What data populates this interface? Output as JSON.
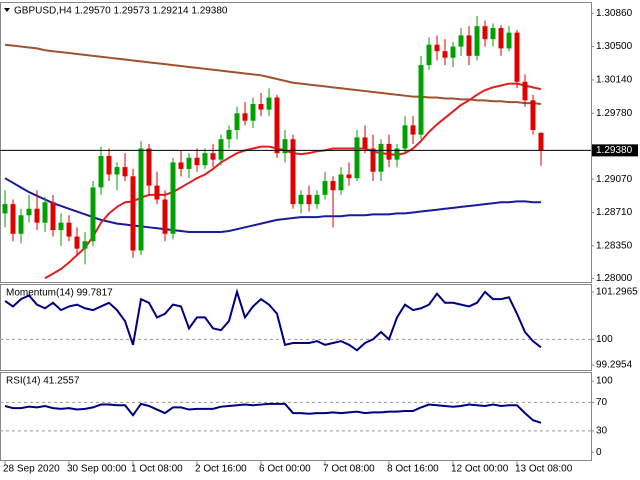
{
  "chart_data": {
    "type": "candlestick",
    "title": "GBPUSD,H4  1.29570 1.29573 1.29214 1.29380",
    "categories": [
      "28 Sep 2020",
      null,
      null,
      null,
      null,
      null,
      null,
      null,
      "30 Sep 00:00",
      null,
      null,
      null,
      null,
      null,
      null,
      null,
      "1 Oct 08:00",
      null,
      null,
      null,
      null,
      null,
      null,
      null,
      "2 Oct 16:00",
      null,
      null,
      null,
      null,
      null,
      null,
      null,
      "6 Oct 00:00",
      null,
      null,
      null,
      null,
      null,
      null,
      null,
      "7 Oct 08:00",
      null,
      null,
      null,
      null,
      null,
      null,
      null,
      "8 Oct 16:00",
      null,
      null,
      null,
      null,
      null,
      null,
      null,
      "12 Oct 00:00",
      null,
      null,
      null,
      null,
      null,
      null,
      null,
      "13 Oct 08:00",
      null,
      null,
      null
    ],
    "ohlc": [
      [
        1.287,
        1.2895,
        1.2855,
        1.288
      ],
      [
        1.288,
        1.2885,
        1.284,
        1.2848
      ],
      [
        1.2848,
        1.2875,
        1.2838,
        1.2868
      ],
      [
        1.2868,
        1.289,
        1.286,
        1.2875
      ],
      [
        1.2875,
        1.2895,
        1.2852,
        1.286
      ],
      [
        1.286,
        1.2888,
        1.285,
        1.2882
      ],
      [
        1.2882,
        1.289,
        1.2845,
        1.2852
      ],
      [
        1.2852,
        1.287,
        1.2835,
        1.286
      ],
      [
        1.286,
        1.2868,
        1.284,
        1.2845
      ],
      [
        1.2845,
        1.2855,
        1.2825,
        1.2832
      ],
      [
        1.2832,
        1.285,
        1.2815,
        1.284
      ],
      [
        1.284,
        1.2905,
        1.2835,
        1.2898
      ],
      [
        1.2898,
        1.2942,
        1.289,
        1.2932
      ],
      [
        1.2932,
        1.294,
        1.2905,
        1.2912
      ],
      [
        1.2912,
        1.2925,
        1.2895,
        1.292
      ],
      [
        1.292,
        1.2935,
        1.2905,
        1.291
      ],
      [
        1.291,
        1.2918,
        1.2822,
        1.283
      ],
      [
        1.283,
        1.2948,
        1.2825,
        1.294
      ],
      [
        1.294,
        1.2945,
        1.289,
        1.29
      ],
      [
        1.29,
        1.2915,
        1.288,
        1.2885
      ],
      [
        1.2885,
        1.2895,
        1.284,
        1.2848
      ],
      [
        1.2848,
        1.293,
        1.2842,
        1.2925
      ],
      [
        1.2925,
        1.2938,
        1.291,
        1.2918
      ],
      [
        1.2918,
        1.2935,
        1.2908,
        1.293
      ],
      [
        1.293,
        1.294,
        1.2915,
        1.2922
      ],
      [
        1.2922,
        1.294,
        1.2918,
        1.2935
      ],
      [
        1.2935,
        1.2945,
        1.292,
        1.2928
      ],
      [
        1.2928,
        1.2955,
        1.2922,
        1.295
      ],
      [
        1.295,
        1.2965,
        1.294,
        1.296
      ],
      [
        1.296,
        1.2985,
        1.295,
        1.2978
      ],
      [
        1.2978,
        1.299,
        1.2965,
        1.297
      ],
      [
        1.297,
        1.2995,
        1.2962,
        1.2988
      ],
      [
        1.2988,
        1.3,
        1.2975,
        1.2982
      ],
      [
        1.2982,
        1.3005,
        1.2975,
        1.2995
      ],
      [
        1.2995,
        1.2998,
        1.293,
        1.2935
      ],
      [
        1.2935,
        1.296,
        1.2925,
        1.295
      ],
      [
        1.295,
        1.2955,
        1.2875,
        1.288
      ],
      [
        1.288,
        1.2895,
        1.287,
        1.289
      ],
      [
        1.289,
        1.29,
        1.2872,
        1.288
      ],
      [
        1.288,
        1.2895,
        1.2875,
        1.289
      ],
      [
        1.289,
        1.2915,
        1.2885,
        1.2905
      ],
      [
        1.2905,
        1.291,
        1.2855,
        1.2895
      ],
      [
        1.2895,
        1.292,
        1.289,
        1.2912
      ],
      [
        1.2912,
        1.2925,
        1.29,
        1.2908
      ],
      [
        1.2908,
        1.296,
        1.2905,
        1.2952
      ],
      [
        1.2952,
        1.2965,
        1.2935,
        1.294
      ],
      [
        1.294,
        1.2955,
        1.2905,
        1.2915
      ],
      [
        1.2915,
        1.295,
        1.2905,
        1.2945
      ],
      [
        1.2945,
        1.2955,
        1.292,
        1.2928
      ],
      [
        1.2928,
        1.2945,
        1.292,
        1.294
      ],
      [
        1.294,
        1.2975,
        1.2935,
        1.2965
      ],
      [
        1.2965,
        1.2975,
        1.2945,
        1.2955
      ],
      [
        1.2955,
        1.304,
        1.295,
        1.303
      ],
      [
        1.303,
        1.306,
        1.3025,
        1.3052
      ],
      [
        1.3052,
        1.3062,
        1.3035,
        1.3045
      ],
      [
        1.3045,
        1.3058,
        1.303,
        1.3038
      ],
      [
        1.3038,
        1.3055,
        1.3028,
        1.305
      ],
      [
        1.305,
        1.307,
        1.304,
        1.3062
      ],
      [
        1.3062,
        1.3072,
        1.303,
        1.304
      ],
      [
        1.304,
        1.3083,
        1.3035,
        1.3072
      ],
      [
        1.3072,
        1.3078,
        1.305,
        1.3058
      ],
      [
        1.3058,
        1.3075,
        1.305,
        1.307
      ],
      [
        1.307,
        1.3073,
        1.304,
        1.3048
      ],
      [
        1.3048,
        1.3072,
        1.3045,
        1.3065
      ],
      [
        1.3065,
        1.3068,
        1.3005,
        1.3012
      ],
      [
        1.3012,
        1.302,
        1.2985,
        1.2992
      ],
      [
        1.2992,
        1.2998,
        1.2955,
        1.296
      ],
      [
        1.2957,
        1.29573,
        1.29214,
        1.2938
      ]
    ],
    "up_color": "#00a000",
    "down_color": "#e00000",
    "ylim": [
      1.2796,
      1.3097
    ],
    "yticks": [
      {
        "value": 1.3086,
        "label": "1.30860"
      },
      {
        "value": 1.305,
        "label": "1.30500"
      },
      {
        "value": 1.3014,
        "label": "1.30140"
      },
      {
        "value": 1.2978,
        "label": "1.29780"
      },
      {
        "value": 1.2907,
        "label": "1.29070"
      },
      {
        "value": 1.2871,
        "label": "1.28710"
      },
      {
        "value": 1.2835,
        "label": "1.28350"
      },
      {
        "value": 1.28,
        "label": "1.28000"
      }
    ],
    "last_price": {
      "value": 1.2938,
      "label": "1.29380"
    },
    "overlays": [
      {
        "color": "#a0522d",
        "values": [
          1.3052,
          1.3051,
          1.305,
          1.3049,
          1.3048,
          1.3046,
          1.3045,
          1.3044,
          1.3043,
          1.3042,
          1.3041,
          1.304,
          1.3039,
          1.3038,
          1.3037,
          1.3036,
          1.3035,
          1.3034,
          1.3033,
          1.3032,
          1.3031,
          1.303,
          1.3029,
          1.3028,
          1.3027,
          1.3026,
          1.3025,
          1.3024,
          1.3023,
          1.3022,
          1.3021,
          1.302,
          1.3019,
          1.3017,
          1.3015,
          1.3013,
          1.3011,
          1.301,
          1.3009,
          1.3008,
          1.3007,
          1.3006,
          1.3005,
          1.3004,
          1.3003,
          1.3002,
          1.3001,
          1.3,
          1.2999,
          1.2998,
          1.2997,
          1.2996,
          1.2996,
          1.2995,
          1.2995,
          1.2994,
          1.2994,
          1.2993,
          1.2993,
          1.2992,
          1.2992,
          1.2991,
          1.2991,
          1.299,
          1.299,
          1.2989,
          1.2989,
          1.2988
        ]
      },
      {
        "color": "#1a1aa0",
        "values": [
          1.2908,
          1.2903,
          1.2898,
          1.2893,
          1.2889,
          1.2885,
          1.2881,
          1.2878,
          1.2875,
          1.2872,
          1.2869,
          1.2866,
          1.2863,
          1.2861,
          1.2859,
          1.2858,
          1.2857,
          1.2856,
          1.2855,
          1.2854,
          1.2853,
          1.2852,
          1.2851,
          1.285,
          1.285,
          1.285,
          1.285,
          1.285,
          1.2851,
          1.2853,
          1.2855,
          1.2857,
          1.2859,
          1.2861,
          1.2863,
          1.2864,
          1.2865,
          1.2866,
          1.2866,
          1.2866,
          1.2867,
          1.2867,
          1.2867,
          1.2868,
          1.2868,
          1.2868,
          1.2869,
          1.2869,
          1.2869,
          1.287,
          1.287,
          1.2871,
          1.2872,
          1.2873,
          1.2874,
          1.2875,
          1.2876,
          1.2877,
          1.2878,
          1.2879,
          1.288,
          1.2881,
          1.2882,
          1.2882,
          1.2883,
          1.2883,
          1.2882,
          1.2882
        ]
      },
      {
        "color": "#e02020",
        "values": [
          null,
          null,
          null,
          null,
          null,
          1.28,
          1.2805,
          1.281,
          1.2817,
          1.2825,
          1.2833,
          1.2845,
          1.286,
          1.287,
          1.2877,
          1.2882,
          1.2883,
          1.2887,
          1.289,
          1.289,
          1.289,
          1.2893,
          1.2898,
          1.2903,
          1.2908,
          1.2912,
          1.2918,
          1.2925,
          1.293,
          1.2935,
          1.2938,
          1.294,
          1.2942,
          1.2942,
          1.294,
          1.2938,
          1.2935,
          1.2934,
          1.2935,
          1.2937,
          1.2938,
          1.294,
          1.294,
          1.294,
          1.294,
          1.294,
          1.2937,
          1.2935,
          1.2934,
          1.2933,
          1.2935,
          1.294,
          1.2948,
          1.2958,
          1.2966,
          1.2973,
          1.298,
          1.2987,
          1.2992,
          1.2998,
          1.3003,
          1.3006,
          1.3008,
          1.301,
          1.301,
          1.3008,
          1.3006,
          1.3004
        ]
      }
    ],
    "indicators": [
      {
        "title": "Momentum(14) 99.7817",
        "color": "#000080",
        "ylim": [
          99.16,
          101.46
        ],
        "yticks": [
          101.2965,
          100,
          99.2954
        ],
        "levels": [
          100
        ],
        "values": [
          101.05,
          100.9,
          101.1,
          101.2,
          100.95,
          100.85,
          101.0,
          100.8,
          100.9,
          100.95,
          100.85,
          100.8,
          100.9,
          101.0,
          100.8,
          100.5,
          99.85,
          101.1,
          101.0,
          100.6,
          100.7,
          100.95,
          100.9,
          100.3,
          100.6,
          100.6,
          100.3,
          100.25,
          100.5,
          101.3,
          100.6,
          100.9,
          101.1,
          100.95,
          100.7,
          99.85,
          99.9,
          99.9,
          99.9,
          99.95,
          99.85,
          99.9,
          99.95,
          99.85,
          99.7,
          99.9,
          100.0,
          100.2,
          100.0,
          100.6,
          100.95,
          100.8,
          100.85,
          100.95,
          101.25,
          101.0,
          101.0,
          100.95,
          100.9,
          101.0,
          101.3,
          101.1,
          101.1,
          101.15,
          100.7,
          100.2,
          99.95,
          99.78
        ]
      },
      {
        "title": "RSI(14) 41.2557",
        "color": "#000080",
        "ylim": [
          -11,
          110
        ],
        "yticks": [
          100,
          70,
          30,
          0
        ],
        "levels": [
          70,
          30
        ],
        "values": [
          65,
          62,
          62,
          64,
          63,
          65,
          62,
          61,
          62,
          60,
          61,
          63,
          67,
          67,
          66,
          66,
          52,
          68,
          65,
          60,
          55,
          63,
          63,
          60,
          61,
          61,
          61,
          64,
          65,
          66,
          67,
          66,
          67,
          68,
          68,
          68,
          55,
          55,
          54,
          55,
          55,
          56,
          55,
          56,
          57,
          55,
          56,
          56,
          57,
          57,
          58,
          58,
          63,
          67,
          66,
          65,
          64,
          65,
          67,
          66,
          65,
          67,
          65,
          66,
          66,
          55,
          45,
          41.26
        ]
      }
    ]
  }
}
